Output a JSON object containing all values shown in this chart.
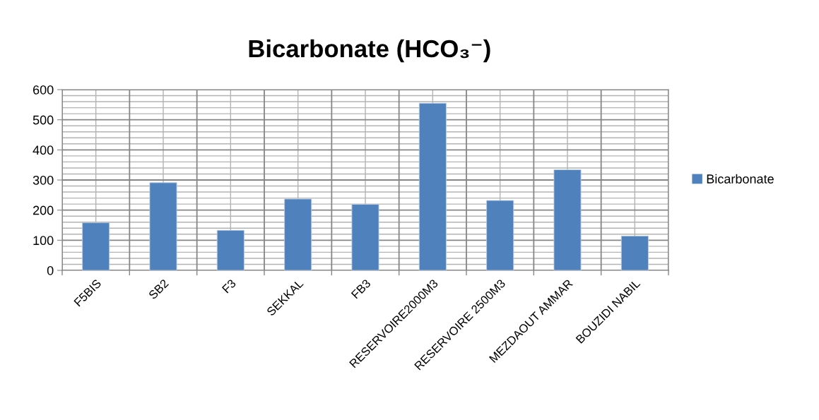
{
  "chart_data": {
    "type": "bar",
    "title": "Bicarbonate (HCO₃⁻)",
    "categories": [
      "F5BIS",
      "SB2",
      "F3",
      "SEKKAL",
      "FB3",
      "RESERVOIRE2000M3",
      "RESERVOIRE 2500M3",
      "MEZDAOUT AMMAR",
      "BOUZIDI NABIL"
    ],
    "series": [
      {
        "name": "Bicarbonate",
        "color": "#4f81bd",
        "values": [
          158,
          291,
          133,
          237,
          219,
          555,
          232,
          334,
          114
        ]
      }
    ],
    "ylim": [
      0,
      600
    ],
    "yticks": [
      0,
      100,
      200,
      300,
      400,
      500,
      600
    ],
    "grid": true,
    "legend": "right"
  }
}
